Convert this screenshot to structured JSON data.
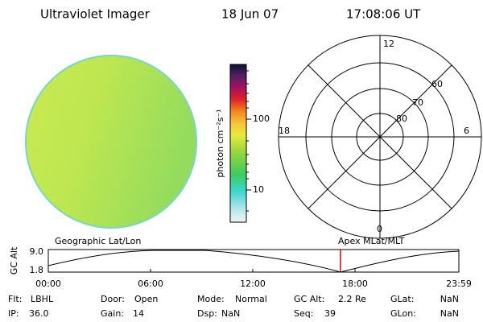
{
  "header": {
    "title": "Ultraviolet Imager",
    "date": "18 Jun 07",
    "time": "17:08:06 UT"
  },
  "colorbar": {
    "label": "photon cm⁻²s⁻¹",
    "ticks": [
      "100",
      "10"
    ]
  },
  "polar": {
    "mlt_labels": [
      "12",
      "18",
      "6",
      "0"
    ],
    "lat_labels": [
      "60",
      "70",
      "80"
    ]
  },
  "timeline": {
    "left_label": "Geographic Lat/Lon",
    "right_label": "Apex MLat/MLT",
    "axis_label": "GC Alt",
    "y_labels": [
      "9.0",
      "1.8"
    ],
    "time_labels": [
      "00:00",
      "06:00",
      "12:00",
      "18:00",
      "23:59"
    ]
  },
  "footer": [
    [
      {
        "key": "Flt:",
        "value": "LBHL"
      },
      {
        "key": "Door:",
        "value": "Open"
      },
      {
        "key": "Mode:",
        "value": "Normal"
      },
      {
        "key": "GC Alt:",
        "value": "2.2 Re"
      },
      {
        "key": "GLat:",
        "value": "NaN"
      }
    ],
    [
      {
        "key": "IP:",
        "value": "36.0"
      },
      {
        "key": "Gain:",
        "value": "14"
      },
      {
        "key": "Dsp:",
        "value": "NaN"
      },
      {
        "key": "Seq:",
        "value": "39"
      },
      {
        "key": "GLon:",
        "value": "NaN"
      }
    ]
  ]
}
